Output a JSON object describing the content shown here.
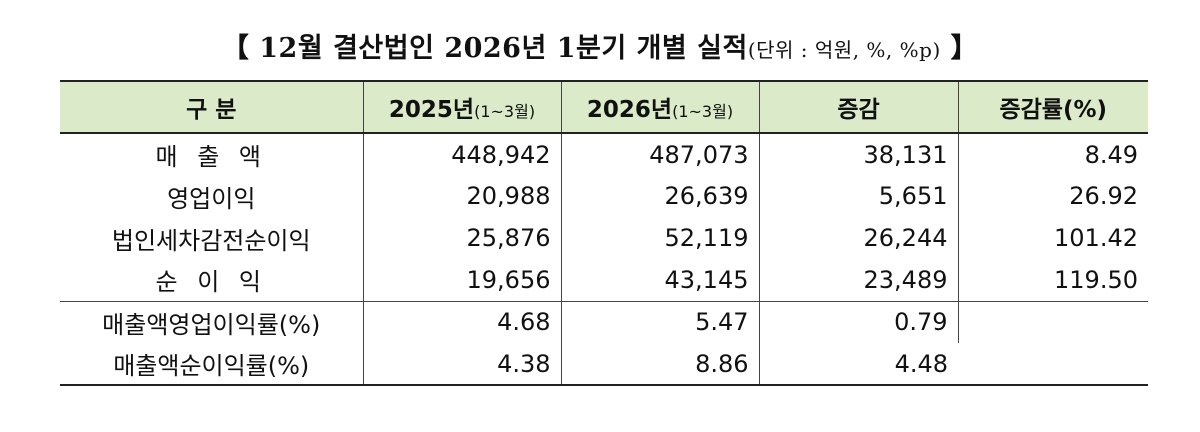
{
  "title": {
    "bracket_open": "【",
    "main": "12월 결산법인 2026년 1분기 개별 실적",
    "unit": "(단위 : 억원, %, %p)",
    "bracket_close": "】"
  },
  "table": {
    "headers": [
      {
        "label": "구  분",
        "sub": ""
      },
      {
        "label": "2025년",
        "sub": "(1~3월)"
      },
      {
        "label": "2026년",
        "sub": "(1~3월)"
      },
      {
        "label": "증감",
        "sub": ""
      },
      {
        "label": "증감률(%)",
        "sub": ""
      }
    ],
    "rows": [
      {
        "label": "매 출 액",
        "v2025": "448,942",
        "v2026": "487,073",
        "change": "38,131",
        "rate": "8.49"
      },
      {
        "label": "영업이익",
        "v2025": "20,988",
        "v2026": "26,639",
        "change": "5,651",
        "rate": "26.92"
      },
      {
        "label": "법인세차감전순이익",
        "v2025": "25,876",
        "v2026": "52,119",
        "change": "26,244",
        "rate": "101.42"
      },
      {
        "label": "순 이 익",
        "v2025": "19,656",
        "v2026": "43,145",
        "change": "23,489",
        "rate": "119.50"
      }
    ],
    "ratio_rows": [
      {
        "label": "매출액영업이익률(%)",
        "v2025": "4.68",
        "v2026": "5.47",
        "change": "0.79"
      },
      {
        "label": "매출액순이익률(%)",
        "v2025": "4.38",
        "v2026": "8.86",
        "change": "4.48"
      }
    ]
  }
}
